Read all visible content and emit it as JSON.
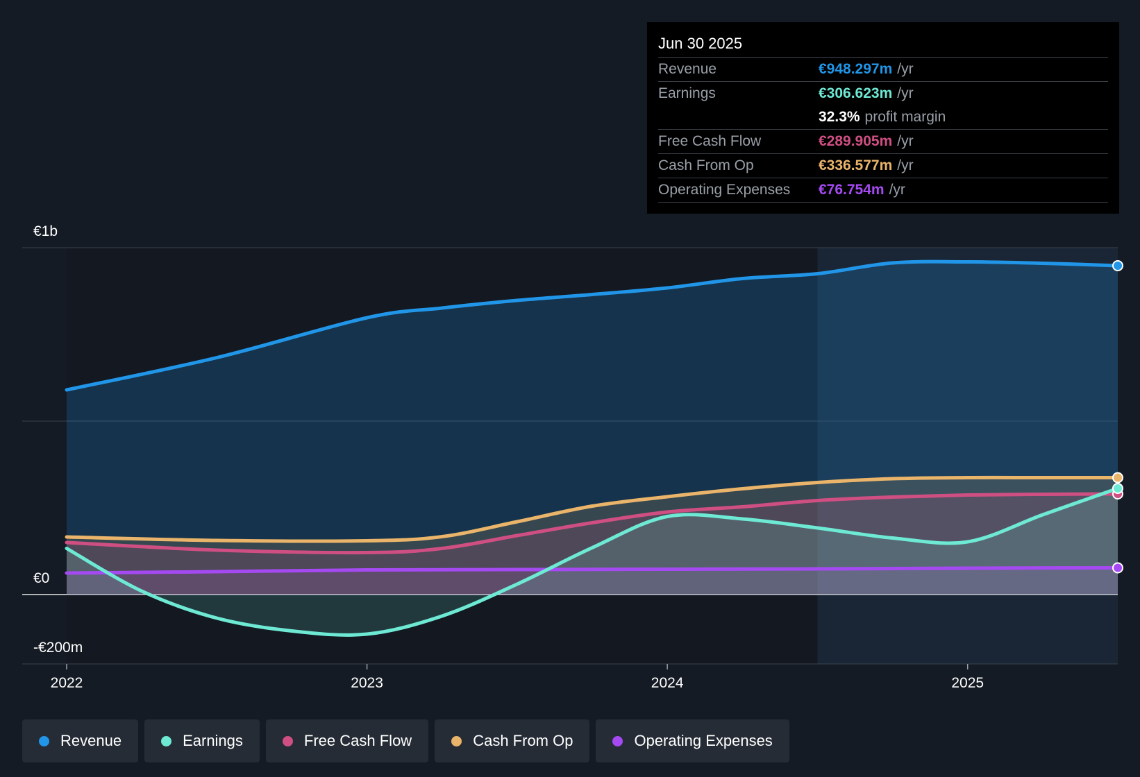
{
  "tooltip": {
    "date": "Jun 30 2025",
    "rows": [
      {
        "label": "Revenue",
        "value": "€948.297m",
        "unit": "/yr",
        "color": "#2196e8"
      },
      {
        "label": "Earnings",
        "value": "€306.623m",
        "unit": "/yr",
        "color": "#6ee9d4"
      },
      {
        "label": "",
        "value": "32.3%",
        "unit": "profit margin",
        "color": "#ffffff"
      },
      {
        "label": "Free Cash Flow",
        "value": "€289.905m",
        "unit": "/yr",
        "color": "#d04f83"
      },
      {
        "label": "Cash From Op",
        "value": "€336.577m",
        "unit": "/yr",
        "color": "#eab56a"
      },
      {
        "label": "Operating Expenses",
        "value": "€76.754m",
        "unit": "/yr",
        "color": "#a54af2"
      }
    ]
  },
  "legend": [
    {
      "label": "Revenue",
      "color": "#2196e8"
    },
    {
      "label": "Earnings",
      "color": "#6ee9d4"
    },
    {
      "label": "Free Cash Flow",
      "color": "#d04f83"
    },
    {
      "label": "Cash From Op",
      "color": "#eab56a"
    },
    {
      "label": "Operating Expenses",
      "color": "#a54af2"
    }
  ],
  "chart_data": {
    "type": "area",
    "title": "",
    "xlabel": "",
    "ylabel": "",
    "ylim": [
      -200,
      1000
    ],
    "xlim": [
      2022.0,
      2025.5
    ],
    "past_data_from": 2024.5,
    "y_tick_labels": [
      {
        "value": 1000,
        "label": "€1b"
      },
      {
        "value": 0,
        "label": "€0"
      },
      {
        "value": -200,
        "label": "-€200m"
      }
    ],
    "x_ticks": [
      2022,
      2023,
      2024,
      2025
    ],
    "x_tick_labels": [
      "2022",
      "2023",
      "2024",
      "2025"
    ],
    "series": [
      {
        "name": "Revenue",
        "color": "#2196e8",
        "x": [
          2022.0,
          2022.5,
          2023.0,
          2023.25,
          2023.5,
          2023.75,
          2024.0,
          2024.25,
          2024.5,
          2024.75,
          2025.0,
          2025.25,
          2025.5
        ],
        "values": [
          590,
          683,
          798,
          826,
          848,
          865,
          884,
          911,
          925,
          956,
          959,
          955,
          948
        ]
      },
      {
        "name": "Earnings",
        "color": "#6ee9d4",
        "x": [
          2022.0,
          2022.25,
          2022.5,
          2022.75,
          2023.0,
          2023.25,
          2023.5,
          2023.75,
          2024.0,
          2024.25,
          2024.5,
          2024.75,
          2025.0,
          2025.25,
          2025.5
        ],
        "values": [
          133,
          10,
          -68,
          -105,
          -114,
          -62,
          30,
          135,
          225,
          218,
          192,
          163,
          152,
          230,
          306
        ]
      },
      {
        "name": "Free Cash Flow",
        "color": "#d04f83",
        "x": [
          2022.0,
          2022.5,
          2023.0,
          2023.25,
          2023.5,
          2023.75,
          2024.0,
          2024.25,
          2024.5,
          2024.75,
          2025.0,
          2025.25,
          2025.5
        ],
        "values": [
          150,
          128,
          121,
          133,
          170,
          207,
          238,
          253,
          271,
          281,
          287,
          289,
          290
        ]
      },
      {
        "name": "Cash From Op",
        "color": "#eab56a",
        "x": [
          2022.0,
          2022.5,
          2023.0,
          2023.25,
          2023.5,
          2023.75,
          2024.0,
          2024.25,
          2024.5,
          2024.75,
          2025.0,
          2025.25,
          2025.5
        ],
        "values": [
          166,
          156,
          155,
          167,
          210,
          255,
          282,
          305,
          323,
          334,
          337,
          337,
          337
        ]
      },
      {
        "name": "Operating Expenses",
        "color": "#a54af2",
        "x": [
          2022.0,
          2022.5,
          2023.0,
          2023.5,
          2024.0,
          2024.5,
          2025.0,
          2025.5
        ],
        "values": [
          62,
          66,
          71,
          72,
          73,
          74,
          76,
          77
        ]
      }
    ]
  }
}
